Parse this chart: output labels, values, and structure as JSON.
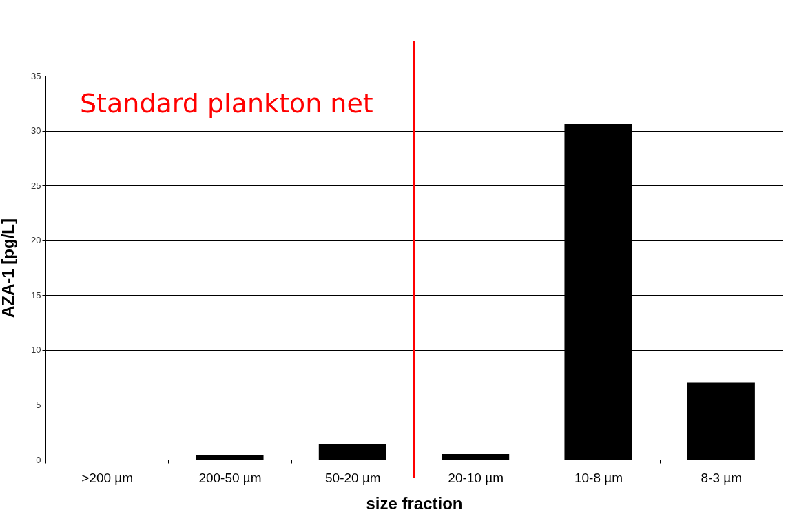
{
  "chart_data": {
    "type": "bar",
    "categories": [
      ">200 µm",
      "200-50 µm",
      "50-20 µm",
      "20-10 µm",
      "10-8 µm",
      "8-3 µm"
    ],
    "values": [
      0,
      0.4,
      1.4,
      0.5,
      30.6,
      7.0
    ],
    "color": "#000000",
    "xlabel": "size fraction",
    "ylabel": "AZA-1 [pg/L]",
    "ylim": [
      0,
      35
    ],
    "yticks": [
      0,
      5,
      10,
      15,
      20,
      25,
      30,
      35
    ],
    "grid": "y",
    "ref_lines": [
      {
        "axis": "x",
        "value": "20-10 µm",
        "label": null,
        "color": "#ff0000"
      }
    ],
    "annotations": [
      "Standard plankton net"
    ]
  }
}
